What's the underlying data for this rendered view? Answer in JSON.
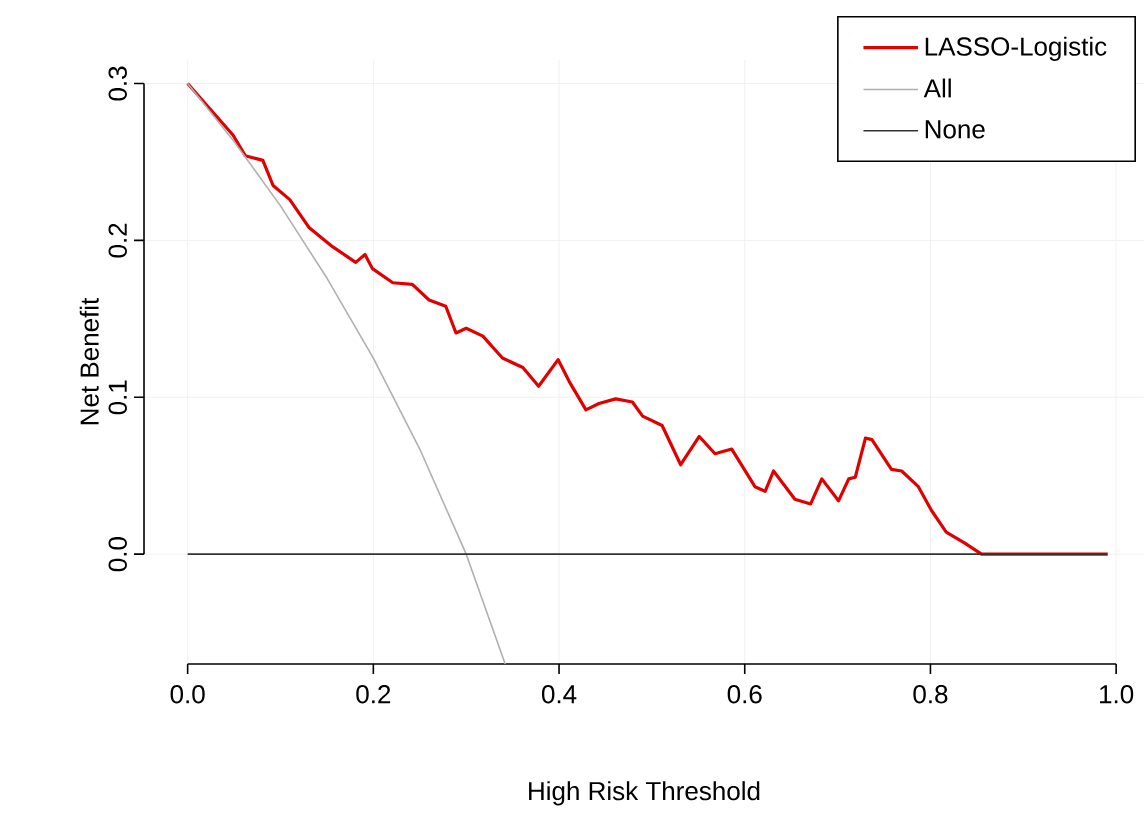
{
  "chart_data": {
    "type": "line",
    "xlabel": "High Risk Threshold",
    "ylabel": "Net Benefit",
    "xlim": [
      -0.047,
      1.03
    ],
    "ylim": [
      -0.07,
      0.315
    ],
    "xticks": [
      {
        "value": 0,
        "label": "0.0"
      },
      0.2,
      0.4,
      0.6,
      0.8,
      {
        "value": 1,
        "label": "1.0"
      }
    ],
    "yticks": [
      {
        "value": 0,
        "label": "0.0"
      },
      0.1,
      0.2,
      0.3
    ],
    "grid": true,
    "legend": "top right",
    "line_style": "solid",
    "marker": "none",
    "series": [
      {
        "name": "LASSO-Logistic",
        "color": "#e00000",
        "x": [
          0,
          0.049,
          0.062,
          0.081,
          0.092,
          0.11,
          0.131,
          0.156,
          0.181,
          0.191,
          0.199,
          0.221,
          0.242,
          0.26,
          0.278,
          0.289,
          0.3,
          0.318,
          0.339,
          0.361,
          0.378,
          0.399,
          0.411,
          0.429,
          0.443,
          0.461,
          0.479,
          0.49,
          0.511,
          0.531,
          0.551,
          0.568,
          0.586,
          0.611,
          0.622,
          0.631,
          0.654,
          0.671,
          0.683,
          0.701,
          0.712,
          0.719,
          0.73,
          0.737,
          0.758,
          0.769,
          0.787,
          0.801,
          0.817,
          0.837,
          0.855,
          0.991
        ],
        "values": [
          0.3,
          0.267,
          0.254,
          0.251,
          0.235,
          0.226,
          0.208,
          0.196,
          0.186,
          0.191,
          0.182,
          0.173,
          0.172,
          0.162,
          0.158,
          0.141,
          0.144,
          0.139,
          0.125,
          0.119,
          0.107,
          0.124,
          0.11,
          0.092,
          0.096,
          0.099,
          0.097,
          0.088,
          0.082,
          0.057,
          0.075,
          0.064,
          0.067,
          0.043,
          0.04,
          0.053,
          0.035,
          0.032,
          0.048,
          0.034,
          0.048,
          0.049,
          0.074,
          0.073,
          0.054,
          0.053,
          0.043,
          0.028,
          0.014,
          0.007,
          0.0,
          0.0
        ]
      },
      {
        "name": "All",
        "color": "#b0b0b0",
        "x": [
          0,
          0.05,
          0.1,
          0.15,
          0.2,
          0.25,
          0.3,
          0.342
        ],
        "values": [
          0.3,
          0.263,
          0.222,
          0.176,
          0.125,
          0.067,
          0.0,
          -0.07
        ]
      },
      {
        "name": "None",
        "color": "#333333",
        "x": [
          0,
          0.99
        ],
        "values": [
          0,
          0
        ]
      }
    ]
  }
}
